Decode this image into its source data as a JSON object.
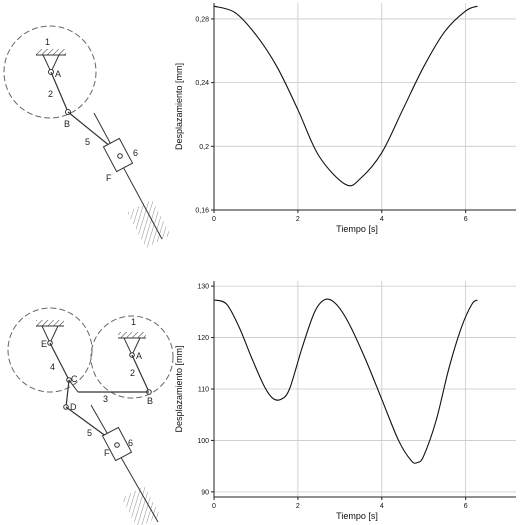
{
  "mechanism_top": {
    "labels": {
      "frame": "1",
      "pivot_A": "A",
      "crank": "2",
      "joint_B": "B",
      "coupler": "5",
      "joint_F": "F",
      "slider": "6"
    }
  },
  "mechanism_bottom": {
    "labels": {
      "frame": "1",
      "pivot_A": "A",
      "pivot_E": "E",
      "crank_2": "2",
      "crank_4": "4",
      "joint_C": "C",
      "joint_D": "D",
      "joint_B": "B",
      "link_3": "3",
      "link_5": "5",
      "joint_F": "F",
      "slider": "6"
    }
  },
  "chart_data": [
    {
      "type": "line",
      "xlabel": "Tiempo [s]",
      "ylabel": "Desplazamiento [mm]",
      "xlim": [
        0,
        7.2
      ],
      "ylim": [
        0.16,
        0.29
      ],
      "xticks": [
        "0",
        "2",
        "4",
        "6"
      ],
      "yticks": [
        "0,16",
        "0,2",
        "0,24",
        "0,28"
      ],
      "grid": true,
      "series": [
        {
          "x": [
            0,
            0.5,
            1.0,
            1.5,
            2.0,
            2.5,
            3.14,
            3.5,
            4.0,
            4.5,
            5.0,
            5.5,
            6.0,
            6.28
          ],
          "y": [
            0.288,
            0.284,
            0.27,
            0.25,
            0.223,
            0.194,
            0.176,
            0.18,
            0.196,
            0.223,
            0.25,
            0.272,
            0.285,
            0.288
          ]
        }
      ]
    },
    {
      "type": "line",
      "xlabel": "Tiempo [s]",
      "ylabel": "Desplazamiento [mm]",
      "xlim": [
        0,
        7.2
      ],
      "ylim": [
        89,
        131
      ],
      "xticks": [
        "0",
        "2",
        "4",
        "6"
      ],
      "yticks": [
        "90",
        "100",
        "110",
        "120",
        "130"
      ],
      "grid": true,
      "series": [
        {
          "x": [
            0,
            0.3,
            0.6,
            0.9,
            1.2,
            1.4,
            1.6,
            1.8,
            2.1,
            2.4,
            2.65,
            2.9,
            3.2,
            3.6,
            4.0,
            4.4,
            4.7,
            4.85,
            5.0,
            5.3,
            5.6,
            5.9,
            6.15,
            6.28
          ],
          "y": [
            127.3,
            126.5,
            122,
            116,
            110.5,
            108.2,
            108,
            110,
            118,
            125,
            127.4,
            126.6,
            123,
            116,
            108,
            100,
            96.1,
            95.7,
            97,
            104,
            114,
            122,
            126.5,
            127.3
          ]
        }
      ]
    }
  ]
}
